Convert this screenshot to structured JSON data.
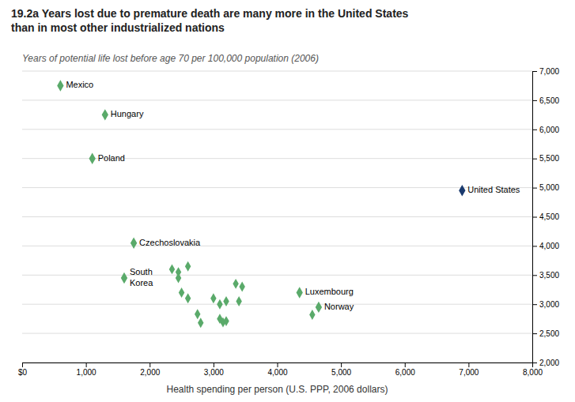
{
  "chart_data": {
    "type": "scatter",
    "title": "19.2a  Years lost due to premature death are many more in the United States\nthan in most other industrialized nations",
    "subtitle": "Years of potential life lost before age 70 per 100,000 population (2006)",
    "x_label": "Health spending per person (U.S. PPP, 2006 dollars)",
    "marker": "diamond",
    "grid": true,
    "x": [
      2350,
      2450,
      2600,
      2450,
      2500,
      2600,
      2750,
      2800,
      3000,
      3100,
      3200,
      3100,
      3150,
      3200,
      3350,
      3450,
      3400,
      4550,
      600,
      1300,
      1100,
      6900,
      1750,
      1600,
      4350,
      4650
    ],
    "values": [
      3600,
      3550,
      3650,
      3450,
      3200,
      3100,
      2830,
      2680,
      3100,
      3000,
      3050,
      2750,
      2690,
      2710,
      3350,
      3300,
      3050,
      2820,
      6750,
      6250,
      5500,
      4950,
      4050,
      3450,
      3200,
      2950
    ],
    "colors": [
      "#5aaa6a",
      "#5aaa6a",
      "#5aaa6a",
      "#5aaa6a",
      "#5aaa6a",
      "#5aaa6a",
      "#5aaa6a",
      "#5aaa6a",
      "#5aaa6a",
      "#5aaa6a",
      "#5aaa6a",
      "#5aaa6a",
      "#5aaa6a",
      "#5aaa6a",
      "#5aaa6a",
      "#5aaa6a",
      "#5aaa6a",
      "#5aaa6a",
      "#5aaa6a",
      "#5aaa6a",
      "#5aaa6a",
      "#1a3a6e",
      "#5aaa6a",
      "#5aaa6a",
      "#5aaa6a",
      "#5aaa6a"
    ],
    "point_labels": [
      null,
      null,
      null,
      null,
      null,
      null,
      null,
      null,
      null,
      null,
      null,
      null,
      null,
      null,
      null,
      null,
      null,
      null,
      "Mexico",
      "Hungary",
      "Poland",
      "United States",
      "Czechoslovakia",
      "South\nKorea",
      "Luxembourg",
      "Norway"
    ],
    "xlim": [
      0,
      8000
    ],
    "ylim": [
      2000,
      7000
    ],
    "xticks": [
      {
        "value": 0,
        "label": "$0"
      },
      {
        "value": 1000,
        "label": "1,000"
      },
      {
        "value": 2000,
        "label": "2,000"
      },
      {
        "value": 3000,
        "label": "3,000"
      },
      {
        "value": 4000,
        "label": "4,000"
      },
      {
        "value": 5000,
        "label": "5,000"
      },
      {
        "value": 6000,
        "label": "6,000"
      },
      {
        "value": 7000,
        "label": "7,000"
      },
      {
        "value": 8000,
        "label": "8,000"
      }
    ],
    "yticks": [
      {
        "value": 2000,
        "label": "2,000"
      },
      {
        "value": 2500,
        "label": "2,500"
      },
      {
        "value": 3000,
        "label": "3,000"
      },
      {
        "value": 3500,
        "label": "3,500"
      },
      {
        "value": 4000,
        "label": "4,000"
      },
      {
        "value": 4500,
        "label": "4,500"
      },
      {
        "value": 5000,
        "label": "5,000"
      },
      {
        "value": 5500,
        "label": "5,500"
      },
      {
        "value": 6000,
        "label": "6,000"
      },
      {
        "value": 6500,
        "label": "6,500"
      },
      {
        "value": 7000,
        "label": "7,000"
      }
    ]
  }
}
